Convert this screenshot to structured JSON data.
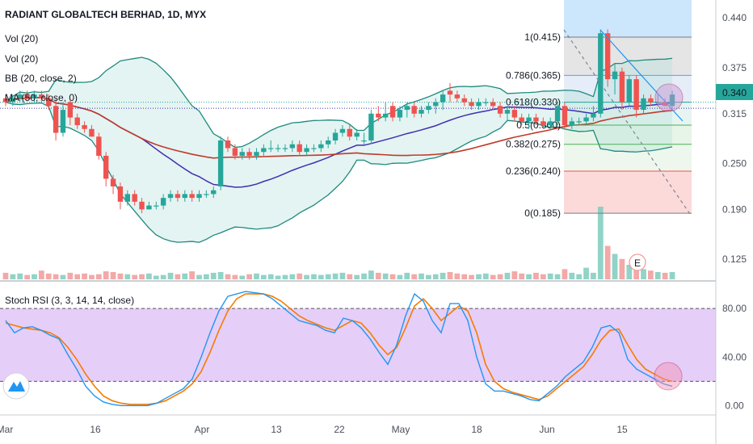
{
  "header": {
    "title": "RADIANT GLOBALTECH BERHAD, 1D, MYX",
    "indicators": [
      "Vol (20)",
      "Vol (20)",
      "BB (20, close, 2)",
      "MA (50, close, 0)"
    ]
  },
  "price_axis": {
    "ticks": [
      "0.440",
      "0.375",
      "0.315",
      "0.250",
      "0.190",
      "0.125"
    ],
    "last_price": "0.340"
  },
  "date_axis": {
    "ticks": [
      "Mar",
      "16",
      "Apr",
      "13",
      "22",
      "May",
      "18",
      "Jun",
      "15"
    ]
  },
  "fib_levels": [
    {
      "label": "1(0.415)",
      "value": 0.415,
      "color": "#787b86"
    },
    {
      "label": "0.786(0.365)",
      "value": 0.365,
      "color": "#5b9cf6"
    },
    {
      "label": "0.618(0.330)",
      "value": 0.33,
      "color": "#26a69a"
    },
    {
      "label": "0.5(0.300)",
      "value": 0.3,
      "color": "#4caf50"
    },
    {
      "label": "0.382(0.275)",
      "value": 0.275,
      "color": "#4caf50"
    },
    {
      "label": "0.236(0.240)",
      "value": 0.24,
      "color": "#ef5350"
    },
    {
      "label": "0(0.185)",
      "value": 0.185,
      "color": "#787b86"
    }
  ],
  "stoch_panel": {
    "title": "Stoch RSI (3, 3, 14, 14, close)",
    "ticks": [
      "80.00",
      "40.00",
      "0.00"
    ]
  },
  "earnings_marker": "E",
  "colors": {
    "up": "#26a69a",
    "down": "#ef5350",
    "bb": "#1e8a7e",
    "ma": "#c0392b",
    "basis": "#3f2fb0",
    "k": "#2196f3",
    "d": "#f57c00",
    "band": "#e1c6f7"
  },
  "chart_data": {
    "type": "candlestick",
    "title": "RADIANT GLOBALTECH BERHAD, 1D, MYX",
    "ylim": [
      0.105,
      0.455
    ],
    "price_candles": [
      [
        0.335,
        0.34,
        0.325,
        0.33
      ],
      [
        0.33,
        0.34,
        0.325,
        0.335
      ],
      [
        0.335,
        0.345,
        0.33,
        0.34
      ],
      [
        0.34,
        0.345,
        0.335,
        0.335
      ],
      [
        0.335,
        0.345,
        0.33,
        0.34
      ],
      [
        0.34,
        0.345,
        0.33,
        0.335
      ],
      [
        0.335,
        0.34,
        0.32,
        0.325
      ],
      [
        0.325,
        0.335,
        0.28,
        0.29
      ],
      [
        0.29,
        0.33,
        0.285,
        0.32
      ],
      [
        0.33,
        0.335,
        0.3,
        0.31
      ],
      [
        0.31,
        0.315,
        0.295,
        0.3
      ],
      [
        0.3,
        0.305,
        0.29,
        0.295
      ],
      [
        0.295,
        0.3,
        0.285,
        0.285
      ],
      [
        0.285,
        0.29,
        0.255,
        0.26
      ],
      [
        0.26,
        0.265,
        0.22,
        0.23
      ],
      [
        0.23,
        0.235,
        0.21,
        0.22
      ],
      [
        0.22,
        0.225,
        0.19,
        0.2
      ],
      [
        0.2,
        0.215,
        0.195,
        0.21
      ],
      [
        0.21,
        0.215,
        0.195,
        0.2
      ],
      [
        0.2,
        0.205,
        0.185,
        0.19
      ],
      [
        0.19,
        0.2,
        0.19,
        0.195
      ],
      [
        0.195,
        0.2,
        0.19,
        0.195
      ],
      [
        0.195,
        0.21,
        0.19,
        0.205
      ],
      [
        0.205,
        0.215,
        0.2,
        0.21
      ],
      [
        0.21,
        0.215,
        0.2,
        0.205
      ],
      [
        0.205,
        0.215,
        0.2,
        0.21
      ],
      [
        0.21,
        0.215,
        0.2,
        0.205
      ],
      [
        0.205,
        0.215,
        0.2,
        0.21
      ],
      [
        0.21,
        0.215,
        0.205,
        0.21
      ],
      [
        0.21,
        0.22,
        0.205,
        0.215
      ],
      [
        0.22,
        0.285,
        0.215,
        0.28
      ],
      [
        0.28,
        0.285,
        0.265,
        0.27
      ],
      [
        0.27,
        0.275,
        0.255,
        0.26
      ],
      [
        0.26,
        0.27,
        0.255,
        0.265
      ],
      [
        0.265,
        0.27,
        0.255,
        0.26
      ],
      [
        0.26,
        0.27,
        0.255,
        0.265
      ],
      [
        0.265,
        0.275,
        0.26,
        0.27
      ],
      [
        0.27,
        0.28,
        0.265,
        0.27
      ],
      [
        0.27,
        0.275,
        0.265,
        0.27
      ],
      [
        0.27,
        0.275,
        0.265,
        0.27
      ],
      [
        0.27,
        0.28,
        0.265,
        0.275
      ],
      [
        0.275,
        0.28,
        0.26,
        0.265
      ],
      [
        0.265,
        0.275,
        0.26,
        0.27
      ],
      [
        0.27,
        0.275,
        0.265,
        0.27
      ],
      [
        0.27,
        0.28,
        0.265,
        0.275
      ],
      [
        0.275,
        0.285,
        0.27,
        0.28
      ],
      [
        0.28,
        0.295,
        0.275,
        0.29
      ],
      [
        0.29,
        0.3,
        0.285,
        0.295
      ],
      [
        0.295,
        0.3,
        0.28,
        0.285
      ],
      [
        0.285,
        0.295,
        0.28,
        0.29
      ],
      [
        0.28,
        0.29,
        0.275,
        0.28
      ],
      [
        0.28,
        0.32,
        0.275,
        0.315
      ],
      [
        0.315,
        0.325,
        0.305,
        0.31
      ],
      [
        0.31,
        0.33,
        0.305,
        0.315
      ],
      [
        0.325,
        0.33,
        0.305,
        0.31
      ],
      [
        0.31,
        0.325,
        0.305,
        0.32
      ],
      [
        0.32,
        0.33,
        0.31,
        0.325
      ],
      [
        0.325,
        0.33,
        0.31,
        0.315
      ],
      [
        0.315,
        0.325,
        0.31,
        0.32
      ],
      [
        0.32,
        0.33,
        0.315,
        0.325
      ],
      [
        0.325,
        0.335,
        0.315,
        0.33
      ],
      [
        0.33,
        0.345,
        0.32,
        0.34
      ],
      [
        0.345,
        0.355,
        0.33,
        0.34
      ],
      [
        0.34,
        0.345,
        0.33,
        0.335
      ],
      [
        0.335,
        0.34,
        0.325,
        0.33
      ],
      [
        0.33,
        0.335,
        0.32,
        0.325
      ],
      [
        0.325,
        0.335,
        0.32,
        0.33
      ],
      [
        0.33,
        0.335,
        0.325,
        0.33
      ],
      [
        0.33,
        0.335,
        0.32,
        0.325
      ],
      [
        0.325,
        0.33,
        0.31,
        0.315
      ],
      [
        0.315,
        0.325,
        0.305,
        0.32
      ],
      [
        0.32,
        0.325,
        0.305,
        0.31
      ],
      [
        0.31,
        0.315,
        0.3,
        0.305
      ],
      [
        0.305,
        0.315,
        0.295,
        0.31
      ],
      [
        0.31,
        0.315,
        0.3,
        0.305
      ],
      [
        0.305,
        0.31,
        0.295,
        0.3
      ],
      [
        0.3,
        0.31,
        0.295,
        0.305
      ],
      [
        0.305,
        0.33,
        0.3,
        0.325
      ],
      [
        0.325,
        0.33,
        0.295,
        0.3
      ],
      [
        0.3,
        0.31,
        0.295,
        0.305
      ],
      [
        0.305,
        0.31,
        0.3,
        0.305
      ],
      [
        0.305,
        0.315,
        0.3,
        0.31
      ],
      [
        0.31,
        0.325,
        0.305,
        0.315
      ],
      [
        0.315,
        0.425,
        0.31,
        0.42
      ],
      [
        0.42,
        0.425,
        0.35,
        0.36
      ],
      [
        0.36,
        0.38,
        0.34,
        0.37
      ],
      [
        0.37,
        0.375,
        0.32,
        0.33
      ],
      [
        0.33,
        0.365,
        0.325,
        0.36
      ],
      [
        0.36,
        0.365,
        0.31,
        0.32
      ],
      [
        0.32,
        0.34,
        0.315,
        0.335
      ],
      [
        0.335,
        0.34,
        0.325,
        0.33
      ],
      [
        0.33,
        0.34,
        0.325,
        0.33
      ],
      [
        0.33,
        0.335,
        0.325,
        0.325
      ],
      [
        0.325,
        0.345,
        0.32,
        0.34
      ]
    ],
    "volume": [
      0.9,
      0.7,
      0.8,
      0.6,
      0.7,
      1.2,
      0.8,
      0.7,
      0.6,
      0.9,
      0.7,
      0.8,
      0.6,
      0.7,
      1.1,
      1.0,
      0.8,
      0.7,
      0.6,
      0.7,
      0.8,
      0.5,
      0.6,
      0.9,
      0.7,
      0.8,
      1.1,
      0.6,
      0.7,
      0.9,
      1.0,
      0.7,
      0.6,
      0.5,
      0.7,
      0.8,
      0.6,
      0.7,
      0.5,
      0.6,
      0.7,
      0.8,
      0.6,
      0.7,
      0.6,
      0.7,
      0.8,
      0.9,
      0.7,
      0.6,
      0.8,
      1.2,
      0.9,
      0.8,
      0.7,
      0.6,
      0.9,
      0.7,
      0.8,
      0.6,
      0.7,
      0.9,
      1.0,
      0.8,
      0.7,
      0.6,
      0.7,
      0.8,
      0.6,
      0.7,
      0.9,
      1.1,
      0.8,
      0.7,
      0.9,
      0.7,
      0.8,
      0.7,
      1.4,
      0.9,
      0.7,
      1.6,
      0.9,
      10.0,
      4.6,
      3.5,
      2.8,
      2.0,
      1.6,
      1.4,
      1.2,
      1.0,
      0.9,
      1.0
    ],
    "ylim_stoch": [
      -5,
      100
    ],
    "stoch_k": [
      70,
      60,
      64,
      65,
      62,
      58,
      55,
      42,
      30,
      16,
      8,
      3,
      1,
      0,
      0,
      0,
      0,
      2,
      6,
      10,
      14,
      22,
      40,
      60,
      78,
      90,
      92,
      94,
      93,
      92,
      88,
      82,
      76,
      70,
      68,
      66,
      62,
      60,
      72,
      70,
      64,
      55,
      44,
      34,
      50,
      74,
      92,
      86,
      70,
      60,
      84,
      84,
      70,
      40,
      18,
      12,
      12,
      10,
      8,
      5,
      4,
      10,
      16,
      24,
      30,
      36,
      48,
      64,
      66,
      60,
      38,
      30,
      26,
      22,
      18,
      16
    ],
    "stoch_d": [
      68,
      66,
      64,
      63,
      62,
      60,
      56,
      48,
      38,
      26,
      16,
      8,
      4,
      2,
      1,
      1,
      1,
      2,
      4,
      8,
      12,
      18,
      28,
      44,
      62,
      78,
      88,
      92,
      92,
      92,
      90,
      86,
      80,
      74,
      70,
      67,
      64,
      62,
      66,
      70,
      68,
      60,
      50,
      42,
      48,
      64,
      82,
      88,
      80,
      70,
      76,
      82,
      78,
      60,
      34,
      20,
      14,
      11,
      9,
      7,
      5,
      8,
      14,
      20,
      26,
      32,
      42,
      54,
      62,
      63,
      50,
      38,
      30,
      26,
      22,
      20
    ],
    "stoch_levels": [
      80,
      20
    ]
  }
}
